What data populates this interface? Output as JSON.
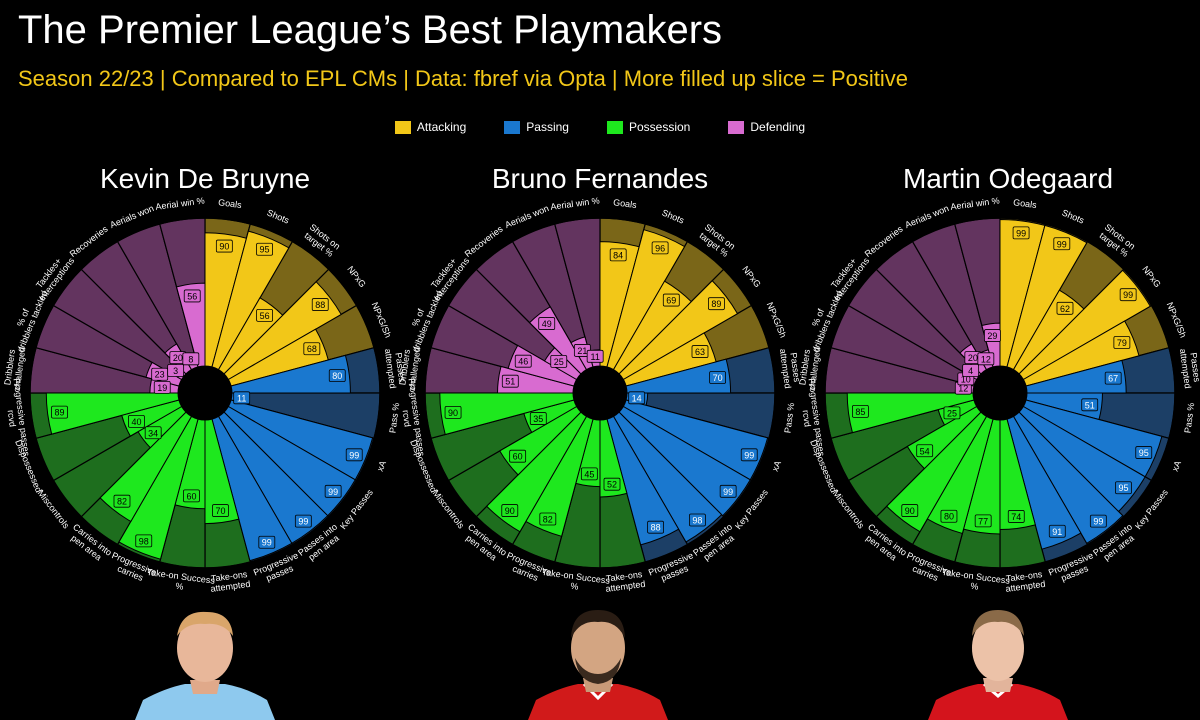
{
  "header": {
    "title": "The Premier League’s Best Playmakers",
    "subtitle": "Season 22/23 | Compared to EPL CMs | Data: fbref via Opta | More filled up slice = Positive"
  },
  "legend": [
    {
      "label": "Attacking",
      "color": "#f2c718"
    },
    {
      "label": "Passing",
      "color": "#1a78cf"
    },
    {
      "label": "Possession",
      "color": "#1ee81e"
    },
    {
      "label": "Defending",
      "color": "#d86bd0"
    }
  ],
  "chart_data": [
    {
      "type": "pizza",
      "title": "Kevin De Bruyne",
      "metrics": [
        "Goals",
        "Shots",
        "Shots on target %",
        "NPxG",
        "NPxG/Sh",
        "Passes attempted",
        "Pass %",
        "xA",
        "Key Passes",
        "Passes into pen area",
        "Progressive passes",
        "Take-ons attempted",
        "Take-on Success %",
        "Progressive carries",
        "Carries into pen area",
        "Miscontrols",
        "Dispossessed",
        "Progressive passes rcvd",
        "Dribblers challenged",
        "% of dribblers tackled",
        "Tackles+ Interceptions",
        "Recoveries",
        "Aerials won",
        "Aerial win %"
      ],
      "categories": [
        "Attacking",
        "Attacking",
        "Attacking",
        "Attacking",
        "Attacking",
        "Passing",
        "Passing",
        "Passing",
        "Passing",
        "Passing",
        "Passing",
        "Possession",
        "Possession",
        "Possession",
        "Possession",
        "Possession",
        "Possession",
        "Possession",
        "Defending",
        "Defending",
        "Defending",
        "Defending",
        "Defending",
        "Defending"
      ],
      "values": [
        90,
        95,
        56,
        88,
        68,
        80,
        11,
        99,
        99,
        99,
        99,
        70,
        60,
        98,
        82,
        34,
        40,
        89,
        19,
        23,
        3,
        20,
        8,
        56
      ],
      "range": [
        0,
        100
      ]
    },
    {
      "type": "pizza",
      "title": "Bruno Fernandes",
      "metrics": [
        "Goals",
        "Shots",
        "Shots on target %",
        "NPxG",
        "NPxG/Sh",
        "Passes attempted",
        "Pass %",
        "xA",
        "Key Passes",
        "Passes into pen area",
        "Progressive passes",
        "Take-ons attempted",
        "Take-on Success %",
        "Progressive carries",
        "Carries into pen area",
        "Miscontrols",
        "Dispossessed",
        "Progressive passes rcvd",
        "Dribblers challenged",
        "% of dribblers tackled",
        "Tackles+ Interceptions",
        "Recoveries",
        "Aerials won",
        "Aerial win %"
      ],
      "categories": [
        "Attacking",
        "Attacking",
        "Attacking",
        "Attacking",
        "Attacking",
        "Passing",
        "Passing",
        "Passing",
        "Passing",
        "Passing",
        "Passing",
        "Possession",
        "Possession",
        "Possession",
        "Possession",
        "Possession",
        "Possession",
        "Possession",
        "Defending",
        "Defending",
        "Defending",
        "Defending",
        "Defending",
        "Defending"
      ],
      "values": [
        84,
        96,
        69,
        89,
        63,
        70,
        14,
        99,
        99,
        98,
        88,
        52,
        45,
        82,
        90,
        60,
        35,
        90,
        51,
        46,
        25,
        49,
        21,
        11
      ],
      "range": [
        0,
        100
      ]
    },
    {
      "type": "pizza",
      "title": "Martin Odegaard",
      "metrics": [
        "Goals",
        "Shots",
        "Shots on target %",
        "NPxG",
        "NPxG/Sh",
        "Passes attempted",
        "Pass %",
        "xA",
        "Key Passes",
        "Passes into pen area",
        "Progressive passes",
        "Take-ons attempted",
        "Take-on Success %",
        "Progressive carries",
        "Carries into pen area",
        "Miscontrols",
        "Dispossessed",
        "Progressive passes rcvd",
        "Dribblers challenged",
        "% of dribblers tackled",
        "Tackles+ Interceptions",
        "Recoveries",
        "Aerials won",
        "Aerial win %"
      ],
      "categories": [
        "Attacking",
        "Attacking",
        "Attacking",
        "Attacking",
        "Attacking",
        "Passing",
        "Passing",
        "Passing",
        "Passing",
        "Passing",
        "Passing",
        "Possession",
        "Possession",
        "Possession",
        "Possession",
        "Possession",
        "Possession",
        "Possession",
        "Defending",
        "Defending",
        "Defending",
        "Defending",
        "Defending",
        "Defending"
      ],
      "values": [
        99,
        99,
        62,
        99,
        79,
        67,
        51,
        95,
        95,
        99,
        91,
        74,
        77,
        80,
        90,
        54,
        25,
        85,
        12,
        10,
        4,
        20,
        12,
        29
      ],
      "range": [
        0,
        100
      ]
    }
  ]
}
